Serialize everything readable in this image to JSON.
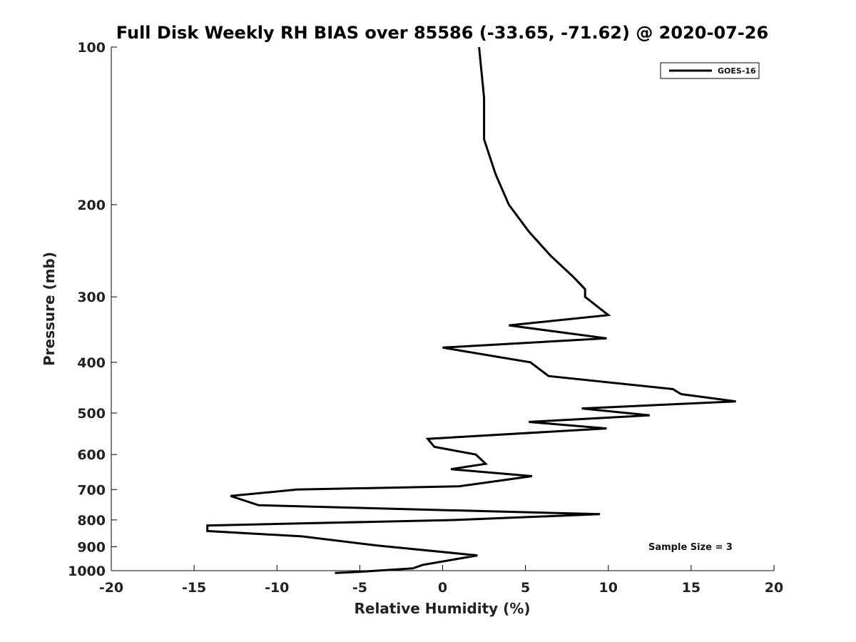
{
  "chart_data": {
    "type": "line",
    "title": "Full Disk Weekly RH BIAS over 85586 (-33.65, -71.62) @ 2020-07-26",
    "xlabel": "Relative Humidity (%)",
    "ylabel": "Pressure (mb)",
    "xlim": [
      -20,
      20
    ],
    "ylim": [
      100,
      1000
    ],
    "y_scale": "log",
    "y_reversed": true,
    "x_ticks": [
      -20,
      -15,
      -10,
      -5,
      0,
      5,
      10,
      15,
      20
    ],
    "y_ticks": [
      100,
      200,
      300,
      400,
      500,
      600,
      700,
      800,
      900,
      1000
    ],
    "grid": false,
    "legend_position": "top-right",
    "annotation": "Sample Size = 3",
    "series": [
      {
        "name": "GOES-16",
        "color": "#000000",
        "points": [
          {
            "x": 2.2,
            "y": 100
          },
          {
            "x": 2.5,
            "y": 125
          },
          {
            "x": 2.5,
            "y": 150
          },
          {
            "x": 3.2,
            "y": 175
          },
          {
            "x": 4.0,
            "y": 200
          },
          {
            "x": 5.2,
            "y": 225
          },
          {
            "x": 6.5,
            "y": 250
          },
          {
            "x": 7.9,
            "y": 275
          },
          {
            "x": 8.6,
            "y": 290
          },
          {
            "x": 8.6,
            "y": 300
          },
          {
            "x": 10.0,
            "y": 325
          },
          {
            "x": 4.0,
            "y": 340
          },
          {
            "x": 9.9,
            "y": 360
          },
          {
            "x": 0.0,
            "y": 375
          },
          {
            "x": 5.3,
            "y": 400
          },
          {
            "x": 6.4,
            "y": 425
          },
          {
            "x": 13.9,
            "y": 450
          },
          {
            "x": 14.4,
            "y": 460
          },
          {
            "x": 17.7,
            "y": 475
          },
          {
            "x": 8.4,
            "y": 490
          },
          {
            "x": 12.5,
            "y": 505
          },
          {
            "x": 5.2,
            "y": 520
          },
          {
            "x": 9.9,
            "y": 535
          },
          {
            "x": -0.9,
            "y": 560
          },
          {
            "x": -0.5,
            "y": 580
          },
          {
            "x": 2.0,
            "y": 600
          },
          {
            "x": 2.6,
            "y": 625
          },
          {
            "x": 0.5,
            "y": 640
          },
          {
            "x": 5.4,
            "y": 660
          },
          {
            "x": 1.0,
            "y": 690
          },
          {
            "x": -8.8,
            "y": 700
          },
          {
            "x": -12.8,
            "y": 720
          },
          {
            "x": -11.1,
            "y": 750
          },
          {
            "x": 9.5,
            "y": 780
          },
          {
            "x": 0.8,
            "y": 800
          },
          {
            "x": -14.2,
            "y": 820
          },
          {
            "x": -14.2,
            "y": 840
          },
          {
            "x": -8.5,
            "y": 860
          },
          {
            "x": -4.0,
            "y": 895
          },
          {
            "x": 2.1,
            "y": 935
          },
          {
            "x": -1.2,
            "y": 975
          },
          {
            "x": -1.8,
            "y": 990
          },
          {
            "x": -5.0,
            "y": 1005
          },
          {
            "x": -6.5,
            "y": 1010
          }
        ]
      }
    ]
  }
}
